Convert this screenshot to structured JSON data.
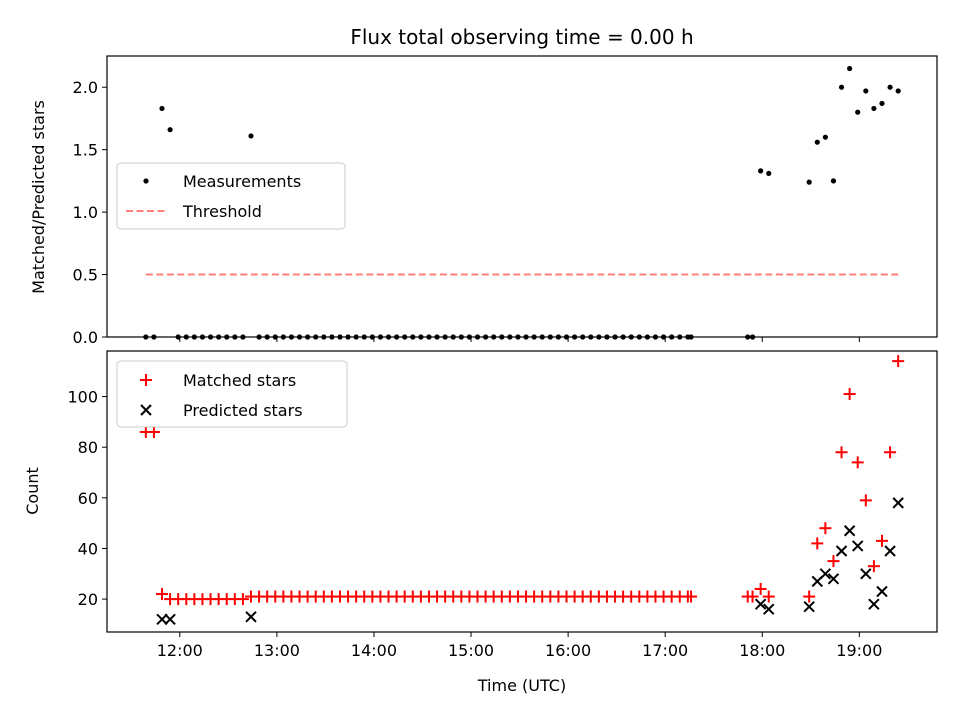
{
  "chart_data": [
    {
      "type": "scatter",
      "title": "Flux total observing time = 0.00 h",
      "xlabel": "",
      "ylabel": "Matched/Predicted stars",
      "xlim": [
        "11:15",
        "19:48"
      ],
      "ylim": [
        0,
        2.25
      ],
      "yticks": [
        0.0,
        0.5,
        1.0,
        1.5,
        2.0
      ],
      "ytick_labels": [
        "0.0",
        "0.5",
        "1.0",
        "1.5",
        "2.0"
      ],
      "grid": false,
      "legend": {
        "placement": "center-left",
        "entries": [
          "Measurements",
          "Threshold"
        ]
      },
      "series": [
        {
          "name": "Measurements",
          "marker": "dot",
          "color": "#000000",
          "x": [
            "11:39",
            "11:44",
            "11:49",
            "11:54",
            "11:59",
            "12:04",
            "12:09",
            "12:14",
            "12:19",
            "12:24",
            "12:29",
            "12:34",
            "12:39",
            "12:44",
            "12:49",
            "12:54",
            "12:59",
            "13:04",
            "13:09",
            "13:14",
            "13:19",
            "13:24",
            "13:29",
            "13:34",
            "13:39",
            "13:44",
            "13:49",
            "13:54",
            "13:59",
            "14:04",
            "14:09",
            "14:14",
            "14:19",
            "14:24",
            "14:29",
            "14:34",
            "14:39",
            "14:44",
            "14:49",
            "14:54",
            "14:59",
            "15:04",
            "15:09",
            "15:14",
            "15:19",
            "15:24",
            "15:29",
            "15:34",
            "15:39",
            "15:44",
            "15:49",
            "15:54",
            "15:59",
            "16:04",
            "16:09",
            "16:14",
            "16:19",
            "16:24",
            "16:29",
            "16:34",
            "16:39",
            "16:44",
            "16:49",
            "16:54",
            "16:59",
            "17:04",
            "17:09",
            "17:14",
            "17:16",
            "17:51",
            "17:54",
            "17:59",
            "18:04",
            "18:29",
            "18:34",
            "18:39",
            "18:44",
            "18:49",
            "18:54",
            "18:59",
            "19:04",
            "19:09",
            "19:14",
            "19:19",
            "19:24"
          ],
          "y": [
            0,
            0,
            1.83,
            1.66,
            0,
            0,
            0,
            0,
            0,
            0,
            0,
            0,
            0,
            1.61,
            0,
            0,
            0,
            0,
            0,
            0,
            0,
            0,
            0,
            0,
            0,
            0,
            0,
            0,
            0,
            0,
            0,
            0,
            0,
            0,
            0,
            0,
            0,
            0,
            0,
            0,
            0,
            0,
            0,
            0,
            0,
            0,
            0,
            0,
            0,
            0,
            0,
            0,
            0,
            0,
            0,
            0,
            0,
            0,
            0,
            0,
            0,
            0,
            0,
            0,
            0,
            0,
            0,
            0,
            0,
            0,
            0,
            1.33,
            1.31,
            1.24,
            1.56,
            1.6,
            1.25,
            2.0,
            2.15,
            1.8,
            1.97,
            1.83,
            1.87,
            2.0,
            1.97
          ]
        },
        {
          "name": "Threshold",
          "style": "dashed",
          "color": "#ff7f7f",
          "x": [
            "11:39",
            "19:24"
          ],
          "y": [
            0.5,
            0.5
          ]
        }
      ]
    },
    {
      "type": "scatter",
      "title": "",
      "xlabel": "Time (UTC)",
      "ylabel": "Count",
      "xlim": [
        "11:15",
        "19:48"
      ],
      "ylim": [
        7,
        118
      ],
      "yticks": [
        20,
        40,
        60,
        80,
        100
      ],
      "ytick_labels": [
        "20",
        "40",
        "60",
        "80",
        "100"
      ],
      "xticks": [
        "12:00",
        "13:00",
        "14:00",
        "15:00",
        "16:00",
        "17:00",
        "18:00",
        "19:00"
      ],
      "grid": false,
      "legend": {
        "placement": "top-left",
        "entries": [
          "Matched stars",
          "Predicted stars"
        ]
      },
      "series": [
        {
          "name": "Matched stars",
          "marker": "plus",
          "color": "#ff0000",
          "x": [
            "11:39",
            "11:44",
            "11:49",
            "11:54",
            "11:59",
            "12:04",
            "12:09",
            "12:14",
            "12:19",
            "12:24",
            "12:29",
            "12:34",
            "12:39",
            "12:44",
            "12:49",
            "12:54",
            "12:59",
            "13:04",
            "13:09",
            "13:14",
            "13:19",
            "13:24",
            "13:29",
            "13:34",
            "13:39",
            "13:44",
            "13:49",
            "13:54",
            "13:59",
            "14:04",
            "14:09",
            "14:14",
            "14:19",
            "14:24",
            "14:29",
            "14:34",
            "14:39",
            "14:44",
            "14:49",
            "14:54",
            "14:59",
            "15:04",
            "15:09",
            "15:14",
            "15:19",
            "15:24",
            "15:29",
            "15:34",
            "15:39",
            "15:44",
            "15:49",
            "15:54",
            "15:59",
            "16:04",
            "16:09",
            "16:14",
            "16:19",
            "16:24",
            "16:29",
            "16:34",
            "16:39",
            "16:44",
            "16:49",
            "16:54",
            "16:59",
            "17:04",
            "17:09",
            "17:14",
            "17:16",
            "17:51",
            "17:54",
            "17:59",
            "18:04",
            "18:29",
            "18:34",
            "18:39",
            "18:44",
            "18:49",
            "18:54",
            "18:59",
            "19:04",
            "19:09",
            "19:14",
            "19:19",
            "19:24"
          ],
          "y": [
            86,
            86,
            22,
            20,
            20,
            20,
            20,
            20,
            20,
            20,
            20,
            20,
            20,
            21,
            21,
            21,
            21,
            21,
            21,
            21,
            21,
            21,
            21,
            21,
            21,
            21,
            21,
            21,
            21,
            21,
            21,
            21,
            21,
            21,
            21,
            21,
            21,
            21,
            21,
            21,
            21,
            21,
            21,
            21,
            21,
            21,
            21,
            21,
            21,
            21,
            21,
            21,
            21,
            21,
            21,
            21,
            21,
            21,
            21,
            21,
            21,
            21,
            21,
            21,
            21,
            21,
            21,
            21,
            21,
            21,
            21,
            24,
            21,
            21,
            42,
            48,
            35,
            78,
            101,
            74,
            59,
            33,
            43,
            78,
            114
          ]
        },
        {
          "name": "Predicted stars",
          "marker": "x",
          "color": "#000000",
          "x": [
            "11:49",
            "11:54",
            "12:44",
            "17:59",
            "18:04",
            "18:29",
            "18:34",
            "18:39",
            "18:44",
            "18:49",
            "18:54",
            "18:59",
            "19:04",
            "19:09",
            "19:14",
            "19:19",
            "19:24"
          ],
          "y": [
            12,
            12,
            13,
            18,
            16,
            17,
            27,
            30,
            28,
            39,
            47,
            41,
            30,
            18,
            23,
            39,
            58
          ]
        }
      ]
    }
  ]
}
